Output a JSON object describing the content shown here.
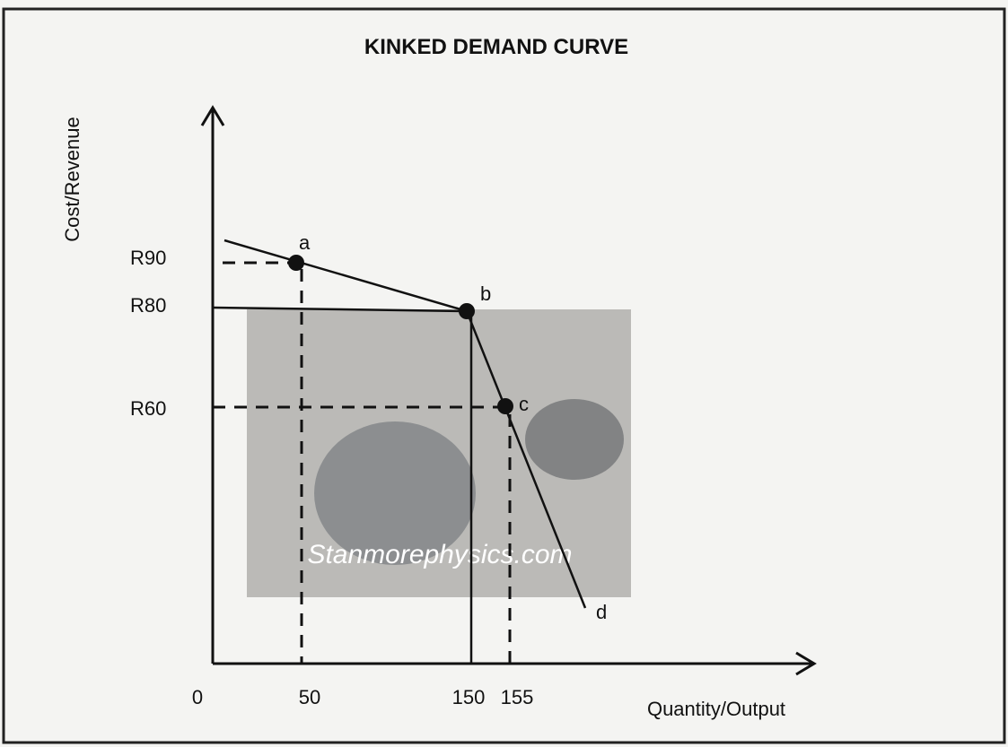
{
  "title": "KINKED DEMAND CURVE",
  "axes": {
    "y_label": "Cost/Revenue",
    "x_label": "Quantity/Output"
  },
  "y_ticks": [
    "R90",
    "R80",
    "R60"
  ],
  "x_ticks": [
    "0",
    "50",
    "150",
    "155"
  ],
  "points": [
    "a",
    "b",
    "c",
    "d"
  ],
  "watermark": "Stanmorephysics.com"
}
